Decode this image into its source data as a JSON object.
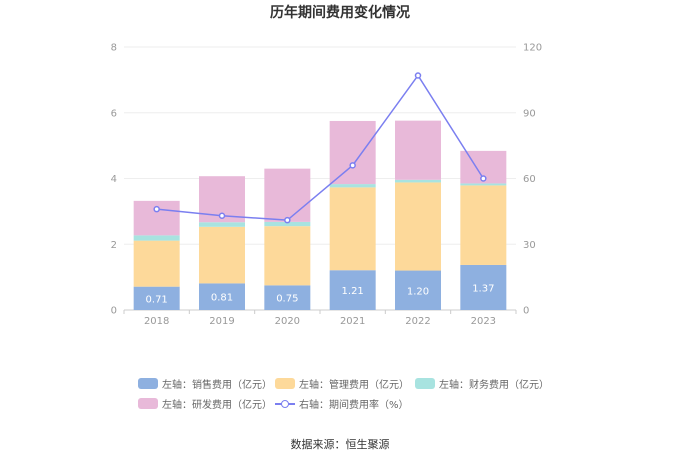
{
  "chart_data": {
    "type": "bar",
    "title": "历年期间费用变化情况",
    "categories": [
      "2018",
      "2019",
      "2020",
      "2021",
      "2022",
      "2023"
    ],
    "left_axis": {
      "ylim": [
        0,
        8
      ],
      "ticks": [
        "0",
        "2",
        "4",
        "6",
        "8"
      ]
    },
    "right_axis": {
      "ylim": [
        0,
        120
      ],
      "ticks": [
        "0",
        "30",
        "60",
        "90",
        "120"
      ]
    },
    "series": [
      {
        "name": "左轴：销售费用（亿元）",
        "values": [
          0.71,
          0.81,
          0.75,
          1.21,
          1.2,
          1.37
        ],
        "labels": [
          "0.71",
          "0.81",
          "0.75",
          "1.21",
          "1.20",
          "1.37"
        ],
        "color": "#8eb0e0",
        "stack": true
      },
      {
        "name": "左轴：管理费用（亿元）",
        "values": [
          1.4,
          1.72,
          1.8,
          2.52,
          2.68,
          2.42
        ],
        "color": "#fdd99a",
        "stack": true
      },
      {
        "name": "左轴：财务费用（亿元）",
        "values": [
          0.16,
          0.14,
          0.13,
          0.1,
          0.08,
          0.06
        ],
        "color": "#a8e3e0",
        "stack": true
      },
      {
        "name": "左轴：研发费用（亿元）",
        "values": [
          1.05,
          1.4,
          1.62,
          1.92,
          1.8,
          0.99
        ],
        "color": "#e8b9d9",
        "stack": true
      },
      {
        "name": "右轴：期间费用率（%）",
        "values": [
          46,
          43,
          41,
          66,
          107,
          60
        ],
        "color": "#7b7ff0",
        "type": "line",
        "axis": "right"
      }
    ],
    "grid": true,
    "legend_position": "bottom"
  },
  "source": "数据来源：恒生聚源"
}
